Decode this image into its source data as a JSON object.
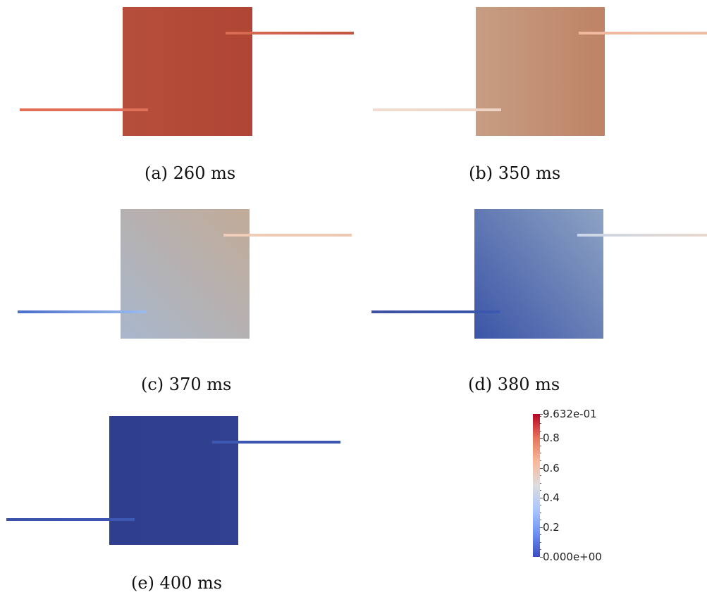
{
  "panels": [
    {
      "caption": "(a) 260 ms",
      "square_colors": [
        "#b54f3b",
        "#b04534"
      ],
      "gradient_dir": "90deg",
      "line_left_colors": [
        "#e26f55",
        "#e0705a"
      ],
      "line_right_colors": [
        "#dc6d55",
        "#c35540"
      ]
    },
    {
      "caption": "(b) 350 ms",
      "square_colors": [
        "#c69e83",
        "#bf8265"
      ],
      "gradient_dir": "90deg",
      "line_left_colors": [
        "#f0ddd0",
        "#efd3c4"
      ],
      "line_right_colors": [
        "#f1b9a0",
        "#eebda6"
      ]
    },
    {
      "caption": "(c) 370 ms",
      "square_colors": [
        "#a8b7cc",
        "#c2ab97"
      ],
      "gradient_dir": "45deg",
      "line_left_colors": [
        "#4a6ccb",
        "#9cbcf0"
      ],
      "line_right_colors": [
        "#f0cdb8",
        "#edc8b2"
      ]
    },
    {
      "caption": "(d) 380 ms",
      "square_colors": [
        "#3b55a7",
        "#8ea3c3"
      ],
      "gradient_dir": "50deg",
      "line_left_colors": [
        "#3f51a3",
        "#3b59b0"
      ],
      "line_right_colors": [
        "#c9d7ea",
        "#ead8cc"
      ]
    },
    {
      "caption": "(e) 400 ms",
      "square_colors": [
        "#2f3f8e",
        "#31418f"
      ],
      "gradient_dir": "90deg",
      "line_left_colors": [
        "#3c52a8",
        "#3d58b5"
      ],
      "line_right_colors": [
        "#3e57b3",
        "#3b55b0"
      ]
    }
  ],
  "colorbar": {
    "range": [
      0.0,
      0.9632
    ],
    "tick_labels": [
      {
        "value": 0.9632,
        "label": "9.632e-01"
      },
      {
        "value": 0.8,
        "label": "0.8"
      },
      {
        "value": 0.6,
        "label": "0.6"
      },
      {
        "value": 0.4,
        "label": "0.4"
      },
      {
        "value": 0.2,
        "label": "0.2"
      },
      {
        "value": 0.0,
        "label": "0.000e+00"
      }
    ],
    "colors": [
      "#3b4cc0",
      "#6f92f3",
      "#aac7fd",
      "#dddddd",
      "#f7b89c",
      "#e7745b",
      "#b40426"
    ]
  }
}
